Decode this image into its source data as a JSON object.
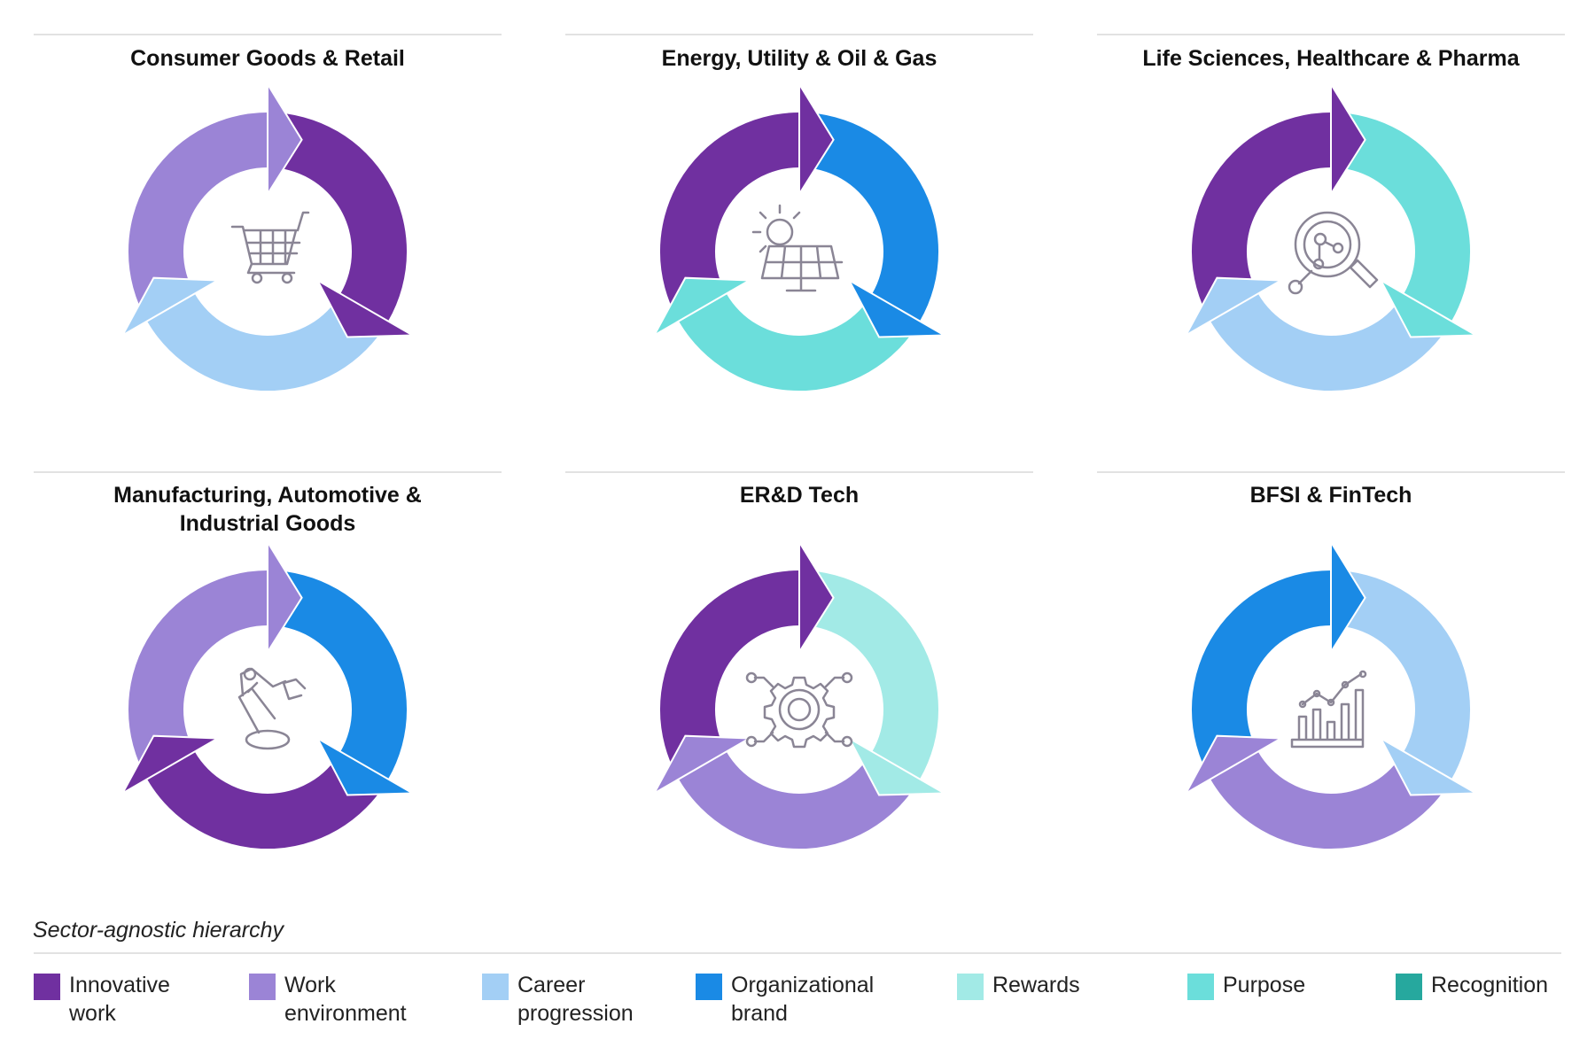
{
  "panels": [
    {
      "title": "Consumer Goods & Retail",
      "segments": [
        "#7030a0",
        "#a3cff5",
        "#9b84d6"
      ]
    },
    {
      "title": "Energy, Utility & Oil & Gas",
      "segments": [
        "#1a8ae5",
        "#6bdedb",
        "#7030a0"
      ]
    },
    {
      "title": "Life Sciences, Healthcare & Pharma",
      "segments": [
        "#6bdedb",
        "#a3cff5",
        "#7030a0"
      ]
    },
    {
      "title": "Manufacturing, Automotive & Industrial Goods",
      "segments": [
        "#1a8ae5",
        "#7030a0",
        "#9b84d6"
      ]
    },
    {
      "title": "ER&D Tech",
      "segments": [
        "#a2eae6",
        "#9b84d6",
        "#7030a0"
      ]
    },
    {
      "title": "BFSI & FinTech",
      "segments": [
        "#a3cff5",
        "#9b84d6",
        "#1a8ae5"
      ]
    }
  ],
  "legend": {
    "title": "Sector-agnostic hierarchy",
    "items": [
      {
        "label": "Innovative work",
        "color": "#7030a0"
      },
      {
        "label": "Work environment",
        "color": "#9b84d6"
      },
      {
        "label": "Career progression",
        "color": "#a3cff5"
      },
      {
        "label": "Organizational brand",
        "color": "#1a8ae5"
      },
      {
        "label": "Rewards",
        "color": "#a2eae6"
      },
      {
        "label": "Purpose",
        "color": "#6bdedb"
      },
      {
        "label": "Recognition",
        "color": "#26a89e"
      }
    ]
  }
}
